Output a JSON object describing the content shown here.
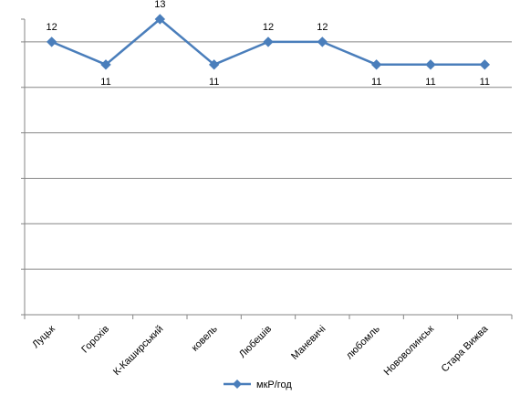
{
  "chart_data": {
    "type": "line",
    "categories": [
      "Луцьк",
      "Горохів",
      "К-Каширський",
      "ковель",
      "Любешів",
      "Маневичі",
      "любомль",
      "Нововолинськ",
      "Стара Вижва"
    ],
    "series": [
      {
        "name": "мкР/год",
        "values": [
          12,
          11,
          13,
          11,
          12,
          12,
          11,
          11,
          11
        ],
        "data_labels": [
          "12",
          "11",
          "13",
          "11",
          "12",
          "12",
          "11",
          "11",
          "11"
        ],
        "color": "#4a7ebb"
      }
    ],
    "ylim": [
      0,
      13
    ],
    "y_gridlines": [
      2,
      4,
      6,
      8,
      10,
      12
    ],
    "grid": true,
    "legend": "bottom",
    "tick_labels_shown": false
  }
}
